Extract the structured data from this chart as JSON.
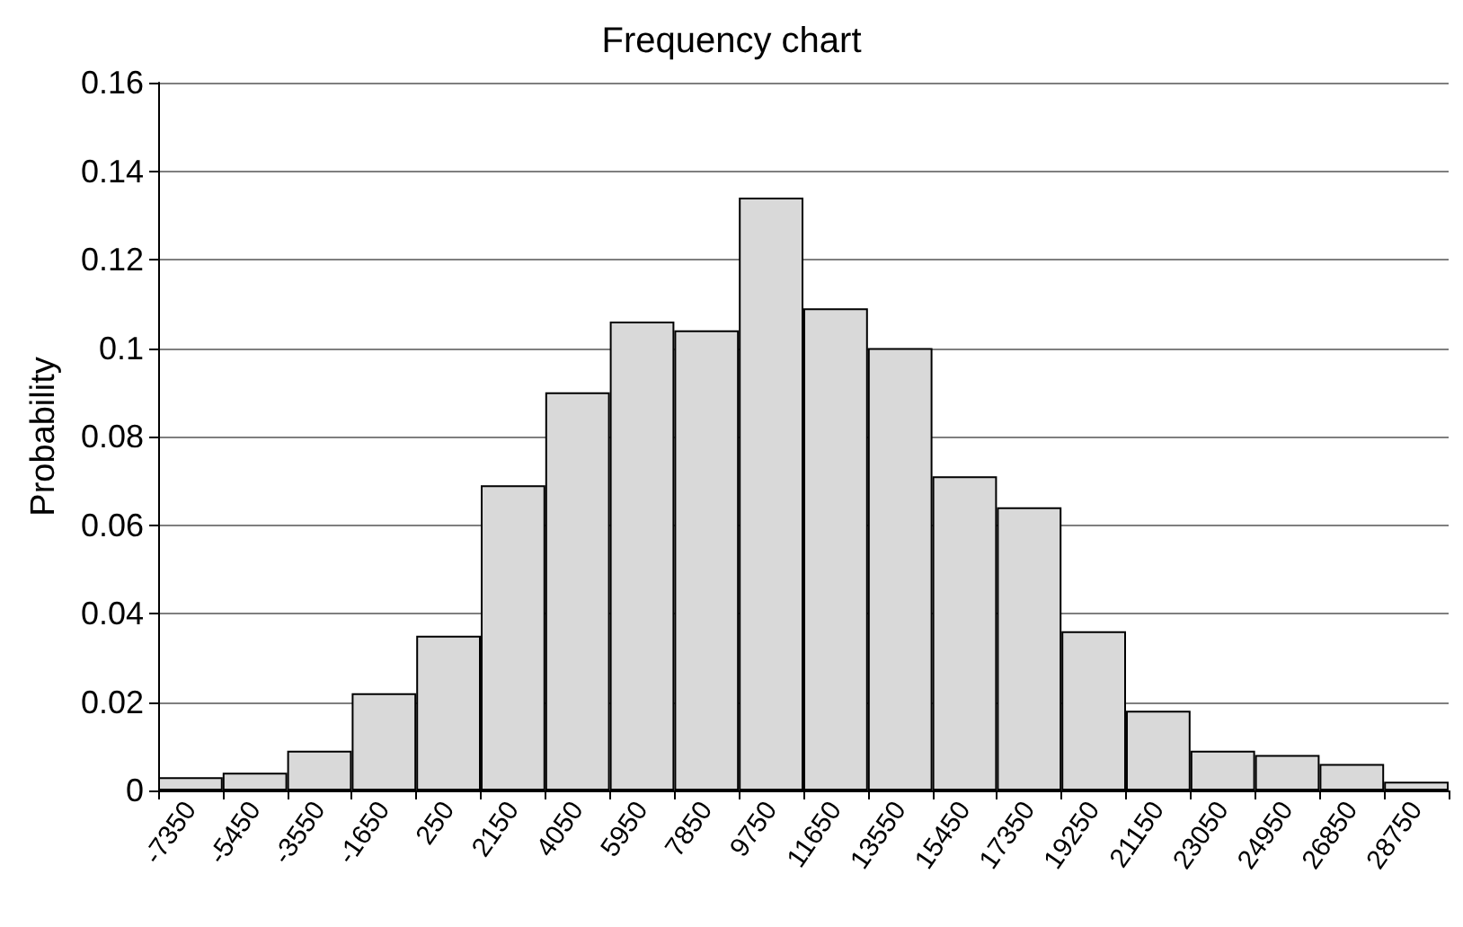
{
  "chart_data": {
    "type": "bar",
    "title": "Frequency chart",
    "ylabel": "Probability",
    "categories": [
      "-7350",
      "-5450",
      "-3550",
      "-1650",
      "250",
      "2150",
      "4050",
      "5950",
      "7850",
      "9750",
      "11650",
      "13550",
      "15450",
      "17350",
      "19250",
      "21150",
      "23050",
      "24950",
      "26850",
      "28750"
    ],
    "values": [
      0.003,
      0.004,
      0.009,
      0.022,
      0.035,
      0.069,
      0.09,
      0.106,
      0.104,
      0.134,
      0.109,
      0.1,
      0.071,
      0.064,
      0.036,
      0.018,
      0.009,
      0.008,
      0.006,
      0.002
    ],
    "color": "#d9d9d9",
    "ylim": [
      0,
      0.16
    ],
    "yticks": [
      0,
      0.02,
      0.04,
      0.06,
      0.08,
      0.1,
      0.12,
      0.14,
      0.16
    ],
    "grid": "y"
  }
}
